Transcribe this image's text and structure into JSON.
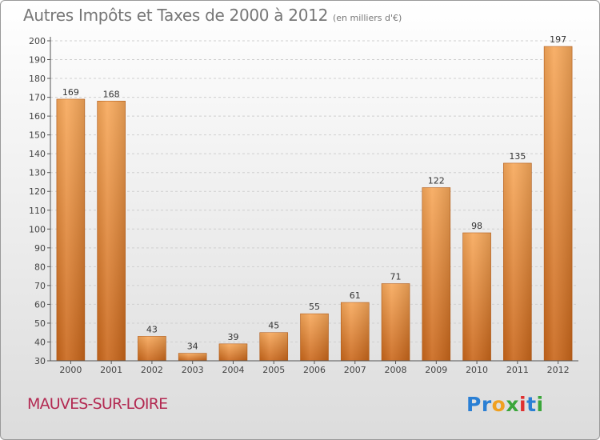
{
  "title": "Autres Impôts et Taxes de 2000 à 2012",
  "subtitle": "(en milliers d'€)",
  "commune": "MAUVES-SUR-LOIRE",
  "logo": {
    "letters": [
      "P",
      "r",
      "o",
      "x",
      "i",
      "t",
      "i"
    ],
    "colors": [
      "#2a7fd4",
      "#2a7fd4",
      "#f0a020",
      "#3aa63a",
      "#e03030",
      "#2a7fd4",
      "#3aa63a"
    ]
  },
  "chart_data": {
    "type": "bar",
    "title": "Autres Impôts et Taxes de 2000 à 2012",
    "subtitle": "(en milliers d'€)",
    "categories": [
      "2000",
      "2001",
      "2002",
      "2003",
      "2004",
      "2005",
      "2006",
      "2007",
      "2008",
      "2009",
      "2010",
      "2011",
      "2012"
    ],
    "values": [
      169,
      168,
      43,
      34,
      39,
      45,
      55,
      61,
      71,
      122,
      98,
      135,
      197
    ],
    "ylim": [
      30,
      200
    ],
    "yticks": [
      30,
      40,
      50,
      60,
      70,
      80,
      90,
      100,
      110,
      120,
      130,
      140,
      150,
      160,
      170,
      180,
      190,
      200
    ],
    "grid": true,
    "bar_color": "#f0952e"
  }
}
